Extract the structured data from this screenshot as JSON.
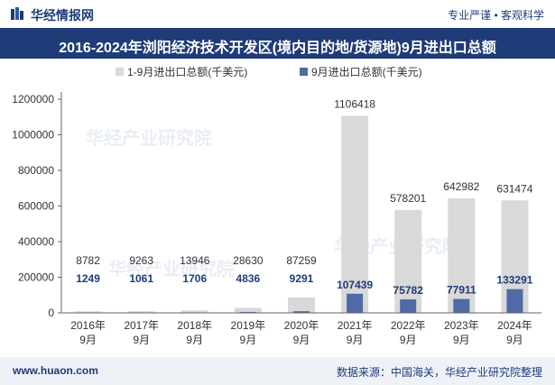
{
  "header": {
    "brand": "华经情报网",
    "tagline": "专业严谨 • 客观科学"
  },
  "chart_data": {
    "type": "bar",
    "title": "2016-2024年浏阳经济技术开发区(境内目的地/货源地)9月进出口总额",
    "categories": [
      "2016年\n9月",
      "2017年\n9月",
      "2018年\n9月",
      "2019年\n9月",
      "2020年\n9月",
      "2021年\n9月",
      "2022年\n9月",
      "2023年\n9月",
      "2024年\n9月"
    ],
    "series": [
      {
        "name": "1-9月进出口总额(千美元)",
        "color": "#d9d9d9",
        "values": [
          8782,
          9263,
          13946,
          28630,
          87259,
          1106418,
          578201,
          642982,
          631474
        ]
      },
      {
        "name": "9月进出口总额(千美元)",
        "color": "#4f6aa7",
        "values": [
          1249,
          1061,
          1706,
          4836,
          9291,
          107439,
          75782,
          77911,
          133291
        ]
      }
    ],
    "ylim": [
      0,
      1200000
    ],
    "yticks": [
      0,
      200000,
      400000,
      600000,
      800000,
      1000000,
      1200000
    ],
    "legend": "top-center",
    "grid": false
  },
  "footer": {
    "site": "www.huaon.com",
    "source": "数据来源：中国海关，华经产业研究院整理"
  },
  "watermark": "华经产业研究院"
}
